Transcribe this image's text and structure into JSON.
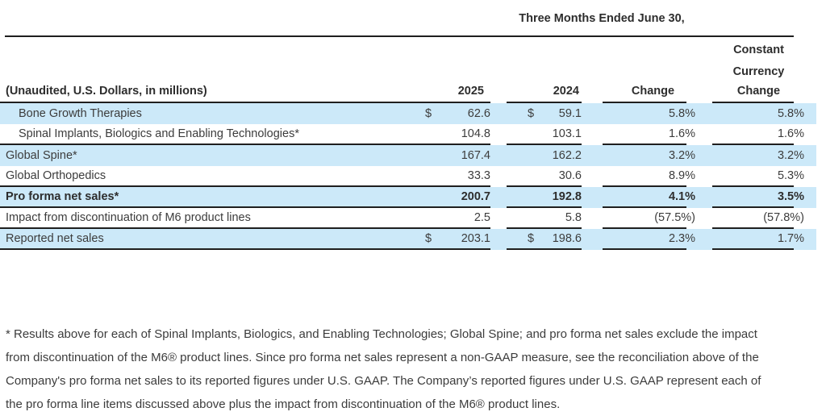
{
  "header": {
    "period_title": "Three Months Ended June 30,",
    "cc_line1": "Constant",
    "cc_line2": "Currency",
    "unaudited_label": "(Unaudited, U.S. Dollars, in millions)",
    "col_2025": "2025",
    "col_2024": "2024",
    "col_change": "Change",
    "col_cc_change": "Change"
  },
  "table": {
    "rows": [
      {
        "label": "Bone Growth Therapies",
        "d1": "$",
        "v1": "62.6",
        "d2": "$",
        "v2": "59.1",
        "c1": "5.8%",
        "c2": "5.8%"
      },
      {
        "label": "Spinal Implants, Biologics and Enabling Technologies*",
        "v1": "104.8",
        "v2": "103.1",
        "c1": "1.6%",
        "c2": "1.6%"
      },
      {
        "label": "Global Spine*",
        "v1": "167.4",
        "v2": "162.2",
        "c1": "3.2%",
        "c2": "3.2%"
      },
      {
        "label": "Global Orthopedics",
        "v1": "33.3",
        "v2": "30.6",
        "c1": "8.9%",
        "c2": "5.3%"
      },
      {
        "label": "Pro forma net sales*",
        "v1": "200.7",
        "v2": "192.8",
        "c1": "4.1%",
        "c2": "3.5%"
      },
      {
        "label": "Impact from discontinuation of M6 product lines",
        "v1": "2.5",
        "v2": "5.8",
        "c1": "(57.5%)",
        "c2": "(57.8%)"
      },
      {
        "label": "Reported net sales",
        "d1": "$",
        "v1": "203.1",
        "d2": "$",
        "v2": "198.6",
        "c1": "2.3%",
        "c2": "1.7%"
      }
    ]
  },
  "footnote": {
    "lines": [
      "* Results above for each of Spinal Implants, Biologics, and Enabling Technologies; Global Spine; and pro forma net sales exclude the impact",
      "from discontinuation of the M6® product lines. Since pro forma net sales represent a non-GAAP measure, see the reconciliation above of the",
      "Company's pro forma net sales to its reported figures under U.S. GAAP. The Company’s reported figures under U.S. GAAP represent each of",
      "the pro forma line items discussed above plus the impact from discontinuation of the M6® product lines."
    ]
  },
  "colors": {
    "row_highlight": "#cce9f9",
    "rule_line": "#1f1f1f",
    "body_text": "#3c3c3c"
  }
}
